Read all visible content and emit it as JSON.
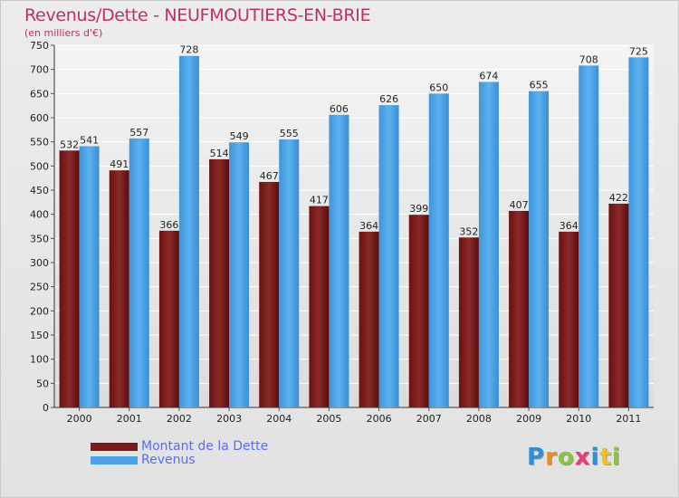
{
  "header": {
    "title": "Revenus/Dette - NEUFMOUTIERS-EN-BRIE",
    "subtitle": "(en milliers d'€)"
  },
  "legend": {
    "items": [
      {
        "label": "Montant de la Dette",
        "color": "#7a1a1a"
      },
      {
        "label": "Revenus",
        "color": "#4aa3e6"
      }
    ]
  },
  "logo": {
    "text": "Proxiti",
    "letters": [
      {
        "ch": "P",
        "color": "#2f8fd8"
      },
      {
        "ch": "r",
        "color": "#f08a24"
      },
      {
        "ch": "o",
        "color": "#8bc43f"
      },
      {
        "ch": "x",
        "color": "#e83d7a"
      },
      {
        "ch": "i",
        "color": "#2f8fd8"
      },
      {
        "ch": "t",
        "color": "#f4c21b"
      },
      {
        "ch": "i",
        "color": "#8bc43f"
      }
    ]
  },
  "chart_data": {
    "type": "bar",
    "categories": [
      "2000",
      "2001",
      "2002",
      "2003",
      "2004",
      "2005",
      "2006",
      "2007",
      "2008",
      "2009",
      "2010",
      "2011"
    ],
    "series": [
      {
        "name": "Montant de la Dette",
        "color": "#7a1a1a",
        "values": [
          532,
          491,
          366,
          514,
          467,
          417,
          364,
          399,
          352,
          407,
          364,
          422
        ]
      },
      {
        "name": "Revenus",
        "color": "#4aa3e6",
        "values": [
          541,
          557,
          728,
          549,
          555,
          606,
          626,
          650,
          674,
          655,
          708,
          725
        ]
      }
    ],
    "ylim": [
      0,
      750
    ],
    "yticks": [
      0,
      50,
      100,
      150,
      200,
      250,
      300,
      350,
      400,
      450,
      500,
      550,
      600,
      650,
      700,
      750
    ],
    "grid": true,
    "legend_position": "bottom-left"
  }
}
